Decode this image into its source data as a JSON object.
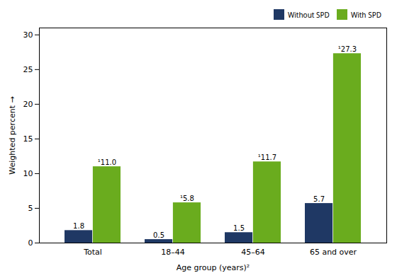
{
  "chart_data": {
    "type": "bar",
    "categories": [
      "Total",
      "18–44",
      "45–64",
      "65 and over"
    ],
    "series": [
      {
        "name": "Without SPD",
        "color": "#1f3864",
        "values": [
          1.8,
          0.5,
          1.5,
          5.7
        ]
      },
      {
        "name": "With SPD",
        "color": "#6aac1e",
        "values": [
          11.0,
          5.8,
          11.7,
          27.3
        ],
        "value_labels": [
          "¹11.0",
          "¹5.8",
          "¹11.7",
          "¹27.3"
        ]
      }
    ],
    "xlabel": "Age group (years)²",
    "ylabel": "Weighted percent",
    "ylim": [
      0,
      31
    ],
    "yticks": [
      0,
      5,
      10,
      15,
      20,
      25,
      30
    ],
    "grid": false,
    "legend": "upper right",
    "data_labels": true
  }
}
